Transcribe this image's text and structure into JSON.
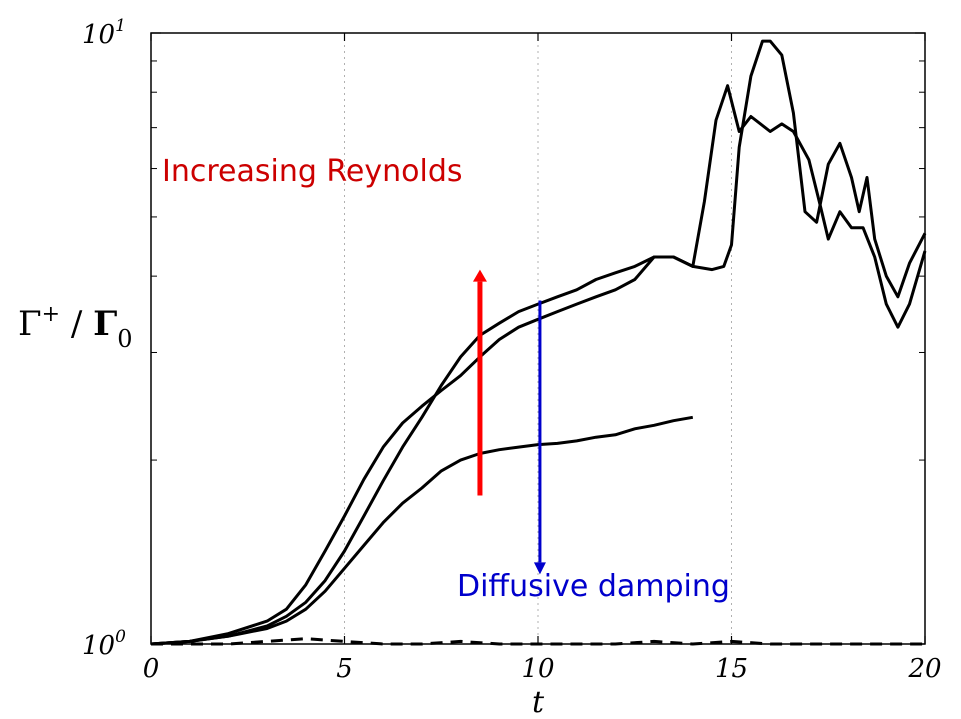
{
  "chart_data": {
    "type": "line",
    "xlabel": "t",
    "ylabel": {
      "main": "Γ",
      "sup": "+",
      "sep": " / ",
      "den": "Γ",
      "sub": "0"
    },
    "xlim": [
      0,
      20
    ],
    "ylim": [
      1,
      10
    ],
    "yscale": "log",
    "x_ticks": [
      "0",
      "5",
      "10",
      "15",
      "20"
    ],
    "y_ticks": [
      {
        "base": "10",
        "exp": "0"
      },
      {
        "base": "10",
        "exp": "1"
      }
    ],
    "grid": "vertical dotted",
    "annotations": [
      {
        "text": "Increasing Reynolds",
        "color": "#cc0000",
        "arrow": {
          "x": 8.5,
          "from": 1.75,
          "to": 4.1,
          "color": "#ff0000"
        }
      },
      {
        "text": "Diffusive damping",
        "color": "#0000cc",
        "arrow": {
          "x": 10.05,
          "from": 3.65,
          "to": 1.3,
          "color": "#0000cc"
        }
      }
    ],
    "series": [
      {
        "style": "solid",
        "points": [
          [
            0,
            1
          ],
          [
            1,
            1.01
          ],
          [
            2,
            1.04
          ],
          [
            3,
            1.09
          ],
          [
            3.5,
            1.14
          ],
          [
            4,
            1.25
          ],
          [
            4.5,
            1.42
          ],
          [
            5,
            1.62
          ],
          [
            5.5,
            1.86
          ],
          [
            6,
            2.1
          ],
          [
            6.5,
            2.3
          ],
          [
            7,
            2.45
          ],
          [
            7.5,
            2.6
          ],
          [
            8,
            2.75
          ],
          [
            8.5,
            2.95
          ],
          [
            9,
            3.15
          ],
          [
            9.5,
            3.3
          ],
          [
            10,
            3.4
          ],
          [
            10.5,
            3.5
          ],
          [
            11,
            3.6
          ],
          [
            11.5,
            3.7
          ],
          [
            12,
            3.8
          ],
          [
            12.5,
            3.95
          ],
          [
            13,
            4.3
          ],
          [
            13.5,
            4.3
          ],
          [
            14,
            4.15
          ],
          [
            14.5,
            4.1
          ],
          [
            14.8,
            4.15
          ],
          [
            15,
            4.5
          ],
          [
            15.2,
            6.5
          ],
          [
            15.5,
            8.5
          ],
          [
            15.8,
            9.7
          ],
          [
            16,
            9.7
          ],
          [
            16.3,
            9.2
          ],
          [
            16.6,
            7.4
          ],
          [
            16.9,
            5.1
          ],
          [
            17.2,
            4.9
          ],
          [
            17.5,
            6.1
          ],
          [
            17.8,
            6.6
          ],
          [
            18.1,
            5.8
          ],
          [
            18.3,
            5.1
          ],
          [
            18.5,
            5.8
          ],
          [
            18.7,
            4.6
          ],
          [
            19,
            4.0
          ],
          [
            19.3,
            3.7
          ],
          [
            19.6,
            4.2
          ],
          [
            20,
            4.7
          ]
        ]
      },
      {
        "style": "solid",
        "points": [
          [
            0,
            1
          ],
          [
            1,
            1.01
          ],
          [
            2,
            1.03
          ],
          [
            3,
            1.07
          ],
          [
            3.5,
            1.11
          ],
          [
            4,
            1.17
          ],
          [
            4.5,
            1.27
          ],
          [
            5,
            1.42
          ],
          [
            5.5,
            1.62
          ],
          [
            6,
            1.85
          ],
          [
            6.5,
            2.1
          ],
          [
            7,
            2.35
          ],
          [
            7.5,
            2.65
          ],
          [
            8,
            2.95
          ],
          [
            8.5,
            3.2
          ],
          [
            9,
            3.35
          ],
          [
            9.5,
            3.5
          ],
          [
            10,
            3.6
          ],
          [
            10.5,
            3.7
          ],
          [
            11,
            3.8
          ],
          [
            11.5,
            3.95
          ],
          [
            12,
            4.05
          ],
          [
            12.5,
            4.15
          ],
          [
            13,
            4.3
          ],
          [
            13.5,
            4.3
          ],
          [
            14,
            4.15
          ],
          [
            14.3,
            5.3
          ],
          [
            14.6,
            7.2
          ],
          [
            14.9,
            8.2
          ],
          [
            15.2,
            6.9
          ],
          [
            15.5,
            7.3
          ],
          [
            16,
            6.9
          ],
          [
            16.3,
            7.1
          ],
          [
            16.6,
            6.9
          ],
          [
            17,
            6.2
          ],
          [
            17.3,
            5.2
          ],
          [
            17.5,
            4.6
          ],
          [
            17.8,
            5.1
          ],
          [
            18.1,
            4.8
          ],
          [
            18.4,
            4.8
          ],
          [
            18.7,
            4.3
          ],
          [
            19,
            3.6
          ],
          [
            19.3,
            3.3
          ],
          [
            19.6,
            3.6
          ],
          [
            20,
            4.4
          ]
        ]
      },
      {
        "style": "solid",
        "points": [
          [
            0,
            1
          ],
          [
            1,
            1.01
          ],
          [
            2,
            1.03
          ],
          [
            3,
            1.06
          ],
          [
            3.5,
            1.09
          ],
          [
            4,
            1.14
          ],
          [
            4.5,
            1.22
          ],
          [
            5,
            1.33
          ],
          [
            5.5,
            1.45
          ],
          [
            6,
            1.58
          ],
          [
            6.5,
            1.7
          ],
          [
            7,
            1.8
          ],
          [
            7.5,
            1.92
          ],
          [
            8,
            2.0
          ],
          [
            8.5,
            2.05
          ],
          [
            9,
            2.08
          ],
          [
            9.5,
            2.1
          ],
          [
            10,
            2.12
          ],
          [
            10.5,
            2.13
          ],
          [
            11,
            2.15
          ],
          [
            11.5,
            2.18
          ],
          [
            12,
            2.2
          ],
          [
            12.5,
            2.25
          ],
          [
            13,
            2.28
          ],
          [
            13.5,
            2.32
          ],
          [
            14,
            2.35
          ]
        ]
      },
      {
        "style": "dashed",
        "points": [
          [
            0,
            1
          ],
          [
            1,
            1.0
          ],
          [
            2,
            1.0
          ],
          [
            3,
            1.01
          ],
          [
            4,
            1.02
          ],
          [
            5,
            1.01
          ],
          [
            6,
            1.0
          ],
          [
            7,
            1.0
          ],
          [
            8,
            1.01
          ],
          [
            9,
            1.0
          ],
          [
            10,
            1.0
          ],
          [
            11,
            1.0
          ],
          [
            12,
            1.0
          ],
          [
            13,
            1.01
          ],
          [
            14,
            1.0
          ],
          [
            15,
            1.01
          ],
          [
            16,
            1.0
          ],
          [
            17,
            1.0
          ],
          [
            18,
            1.0
          ],
          [
            19,
            1.0
          ],
          [
            20,
            1.0
          ]
        ]
      }
    ]
  }
}
